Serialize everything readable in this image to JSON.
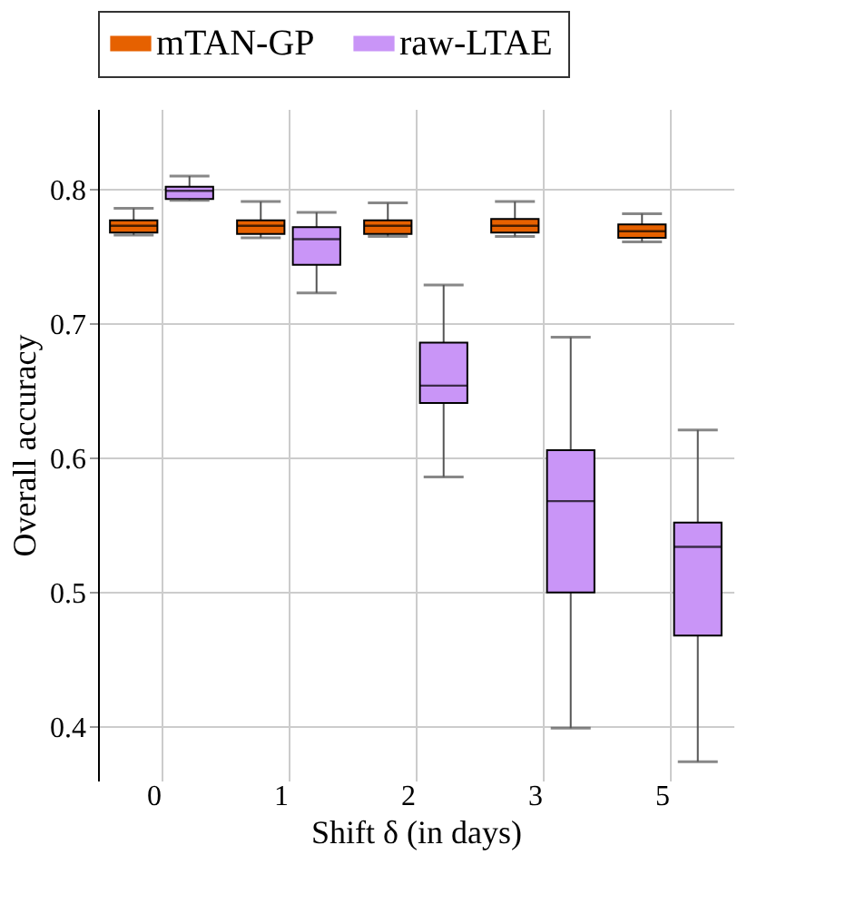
{
  "chart_data": {
    "type": "box",
    "xlabel": "Shift δ (in days)",
    "ylabel": "Overall accuracy",
    "categories": [
      "0",
      "1",
      "2",
      "3",
      "5"
    ],
    "ylim": [
      0.36,
      0.86
    ],
    "yticks": [
      0.4,
      0.5,
      0.6,
      0.7,
      0.8
    ],
    "grid": true,
    "legend": "top",
    "series": [
      {
        "name": "mTAN-GP",
        "color": "#e66100",
        "boxes": [
          {
            "low": 0.766,
            "q1": 0.768,
            "median": 0.773,
            "q3": 0.777,
            "high": 0.786
          },
          {
            "low": 0.764,
            "q1": 0.767,
            "median": 0.773,
            "q3": 0.777,
            "high": 0.791
          },
          {
            "low": 0.765,
            "q1": 0.767,
            "median": 0.773,
            "q3": 0.777,
            "high": 0.79
          },
          {
            "low": 0.765,
            "q1": 0.768,
            "median": 0.773,
            "q3": 0.778,
            "high": 0.791
          },
          {
            "low": 0.761,
            "q1": 0.764,
            "median": 0.769,
            "q3": 0.774,
            "high": 0.782
          }
        ]
      },
      {
        "name": "raw-LTAE",
        "color": "#c995f7",
        "boxes": [
          {
            "low": 0.792,
            "q1": 0.793,
            "median": 0.799,
            "q3": 0.802,
            "high": 0.81
          },
          {
            "low": 0.723,
            "q1": 0.744,
            "median": 0.763,
            "q3": 0.772,
            "high": 0.783
          },
          {
            "low": 0.586,
            "q1": 0.641,
            "median": 0.654,
            "q3": 0.686,
            "high": 0.729
          },
          {
            "low": 0.399,
            "q1": 0.5,
            "median": 0.568,
            "q3": 0.606,
            "high": 0.69
          },
          {
            "low": 0.374,
            "q1": 0.468,
            "median": 0.534,
            "q3": 0.552,
            "high": 0.621
          }
        ]
      }
    ]
  }
}
